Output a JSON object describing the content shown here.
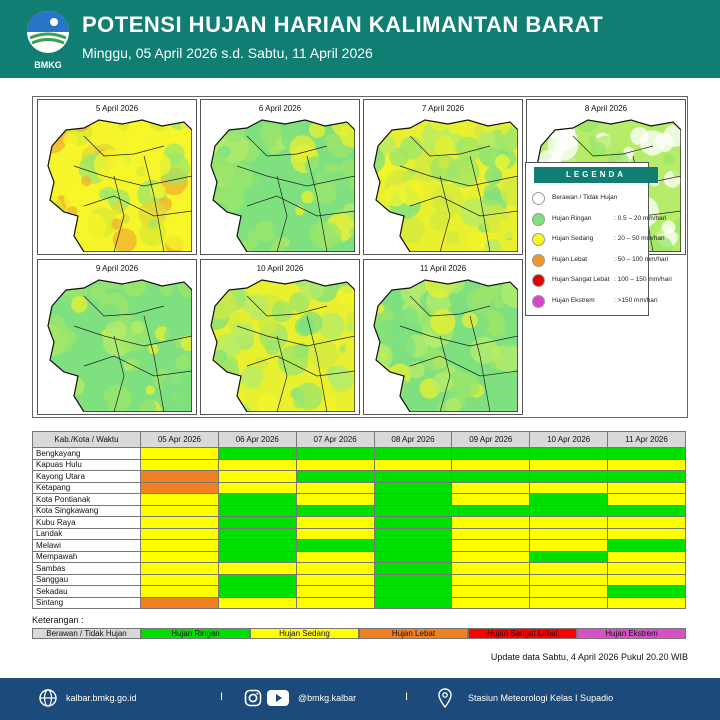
{
  "header": {
    "logo_text": "BMKG",
    "title": "POTENSI HUJAN HARIAN KALIMANTAN BARAT",
    "subtitle": "Minggu, 05 April 2026 s.d. Sabtu, 11 April 2026"
  },
  "maps": [
    {
      "label": "5 April 2026",
      "tone": "wet"
    },
    {
      "label": "6 April 2026",
      "tone": "light"
    },
    {
      "label": "7 April 2026",
      "tone": "mixed"
    },
    {
      "label": "8 April 2026",
      "tone": "dry"
    },
    {
      "label": "9 April 2026",
      "tone": "light"
    },
    {
      "label": "10 April 2026",
      "tone": "mixed"
    },
    {
      "label": "11 April 2026",
      "tone": "light"
    }
  ],
  "legend": {
    "title": "LEGENDA",
    "items": [
      {
        "name": "Berawan / Tidak Hujan",
        "range": "",
        "color": "#ffffff"
      },
      {
        "name": "Hujan Ringan",
        "range": ": 0.5 – 20 mm/hari",
        "color": "#7fe07f"
      },
      {
        "name": "Hujan Sedang",
        "range": ": 20 – 50 mm/hari",
        "color": "#f5f52a"
      },
      {
        "name": "Hujan Lebat",
        "range": ": 50 – 100 mm/hari",
        "color": "#f0962a"
      },
      {
        "name": "Hujan Sangat Lebat",
        "range": ": 100 – 150 mm/hari",
        "color": "#e00000"
      },
      {
        "name": "Hujan Ekstrem",
        "range": ": >150 mm/hari",
        "color": "#d846c8"
      }
    ]
  },
  "colors": {
    "H": "#00e000",
    "S": "#ffff00",
    "L": "#f08020",
    "SL": "#ff0000",
    "E": "#d850c8",
    "B": "#ffffff"
  },
  "table": {
    "header_first": "Kab./Kota / Waktu",
    "dates": [
      "05 Apr 2026",
      "06 Apr 2026",
      "07 Apr 2026",
      "08 Apr 2026",
      "09 Apr 2026",
      "10 Apr 2026",
      "11 Apr 2026"
    ],
    "rows": [
      {
        "name": "Bengkayang",
        "v": [
          "S",
          "H",
          "H",
          "H",
          "H",
          "H",
          "H"
        ]
      },
      {
        "name": "Kapuas Hulu",
        "v": [
          "S",
          "S",
          "S",
          "S",
          "S",
          "S",
          "S"
        ]
      },
      {
        "name": "Kayong Utara",
        "v": [
          "L",
          "S",
          "H",
          "H",
          "H",
          "H",
          "H"
        ]
      },
      {
        "name": "Ketapang",
        "v": [
          "L",
          "S",
          "S",
          "H",
          "S",
          "S",
          "S"
        ]
      },
      {
        "name": "Kota Pontianak",
        "v": [
          "S",
          "H",
          "S",
          "H",
          "S",
          "H",
          "S"
        ]
      },
      {
        "name": "Kota Singkawang",
        "v": [
          "S",
          "H",
          "H",
          "H",
          "H",
          "H",
          "H"
        ]
      },
      {
        "name": "Kubu Raya",
        "v": [
          "S",
          "H",
          "S",
          "H",
          "S",
          "S",
          "S"
        ]
      },
      {
        "name": "Landak",
        "v": [
          "S",
          "H",
          "S",
          "H",
          "S",
          "S",
          "S"
        ]
      },
      {
        "name": "Melawi",
        "v": [
          "S",
          "H",
          "H",
          "H",
          "S",
          "S",
          "H"
        ]
      },
      {
        "name": "Mempawah",
        "v": [
          "S",
          "H",
          "S",
          "H",
          "S",
          "H",
          "S"
        ]
      },
      {
        "name": "Sambas",
        "v": [
          "S",
          "S",
          "S",
          "H",
          "S",
          "S",
          "S"
        ]
      },
      {
        "name": "Sanggau",
        "v": [
          "S",
          "H",
          "S",
          "H",
          "S",
          "S",
          "S"
        ]
      },
      {
        "name": "Sekadau",
        "v": [
          "S",
          "H",
          "S",
          "H",
          "S",
          "S",
          "H"
        ]
      },
      {
        "name": "Sintang",
        "v": [
          "L",
          "S",
          "S",
          "H",
          "S",
          "S",
          "S"
        ]
      }
    ]
  },
  "keterangan": {
    "label": "Keterangan :",
    "items": [
      {
        "name": "Berawan / Tidak Hujan",
        "bg": "#d9d9d9",
        "fg": "#111111"
      },
      {
        "name": "Hujan Ringan",
        "bg": "#00e000",
        "fg": "#111111"
      },
      {
        "name": "Hujan Sedang",
        "bg": "#ffff00",
        "fg": "#111111"
      },
      {
        "name": "Hujan Lebat",
        "bg": "#f08020",
        "fg": "#111111"
      },
      {
        "name": "Hujan Sangat Lebat",
        "bg": "#ff0000",
        "fg": "#111111"
      },
      {
        "name": "Hujan Ekstrem",
        "bg": "#d850c8",
        "fg": "#111111"
      }
    ]
  },
  "update_text": "Update data Sabtu, 4 April 2026 Pukul 20.20 WIB",
  "footer": {
    "website": "kalbar.bmkg.go.id",
    "social": "@bmkg.kalbar",
    "station": "Stasiun Meteorologi Kelas I Supadio",
    "separator": "I"
  }
}
